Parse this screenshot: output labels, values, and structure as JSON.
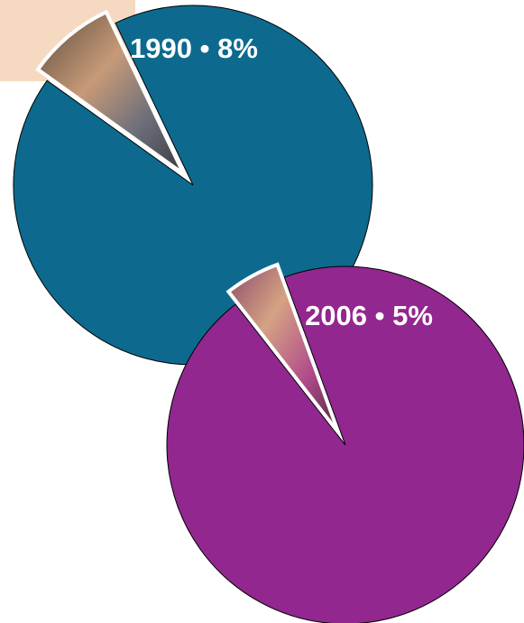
{
  "chart_data": [
    {
      "type": "pie",
      "values": [
        8
      ],
      "value_labels": [
        "1990 • 8%"
      ],
      "colors": [
        "#0d6a8e"
      ]
    },
    {
      "type": "pie",
      "values": [
        5
      ],
      "value_labels": [
        "2006 • 5%"
      ],
      "colors": [
        "#92278f"
      ]
    }
  ]
}
